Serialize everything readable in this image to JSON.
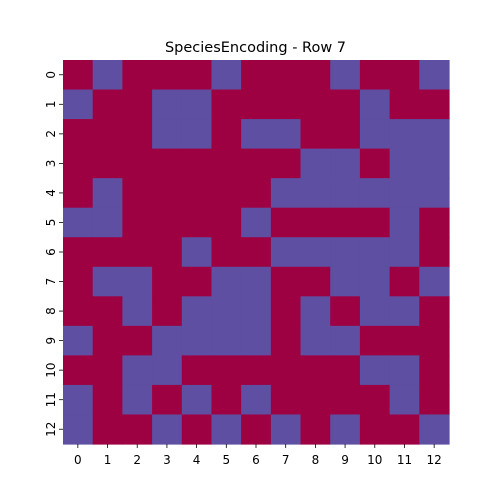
{
  "chart_data": {
    "type": "heatmap",
    "title": "SpeciesEncoding - Row 7",
    "xlabel": "",
    "ylabel": "",
    "x_ticks": [
      "0",
      "1",
      "2",
      "3",
      "4",
      "5",
      "6",
      "7",
      "8",
      "9",
      "10",
      "11",
      "12"
    ],
    "y_ticks": [
      "0",
      "1",
      "2",
      "3",
      "4",
      "5",
      "6",
      "7",
      "8",
      "9",
      "10",
      "11",
      "12"
    ],
    "values": [
      [
        0,
        1,
        0,
        0,
        0,
        1,
        0,
        0,
        0,
        1,
        0,
        0,
        1
      ],
      [
        1,
        0,
        0,
        1,
        1,
        0,
        0,
        0,
        0,
        0,
        1,
        0,
        0
      ],
      [
        0,
        0,
        0,
        1,
        1,
        0,
        1,
        1,
        0,
        0,
        1,
        1,
        1
      ],
      [
        0,
        0,
        0,
        0,
        0,
        0,
        0,
        0,
        1,
        1,
        0,
        1,
        1
      ],
      [
        0,
        1,
        0,
        0,
        0,
        0,
        0,
        1,
        1,
        1,
        1,
        1,
        1
      ],
      [
        1,
        1,
        0,
        0,
        0,
        0,
        1,
        0,
        0,
        0,
        0,
        1,
        0
      ],
      [
        0,
        0,
        0,
        0,
        1,
        0,
        0,
        1,
        1,
        1,
        1,
        1,
        0
      ],
      [
        0,
        1,
        1,
        0,
        0,
        1,
        1,
        0,
        0,
        1,
        1,
        0,
        1
      ],
      [
        0,
        0,
        1,
        0,
        1,
        1,
        1,
        0,
        1,
        0,
        1,
        1,
        0
      ],
      [
        1,
        0,
        0,
        1,
        1,
        1,
        1,
        0,
        1,
        1,
        0,
        0,
        0
      ],
      [
        0,
        0,
        1,
        1,
        0,
        0,
        0,
        0,
        0,
        0,
        1,
        1,
        0
      ],
      [
        1,
        0,
        1,
        0,
        1,
        0,
        1,
        0,
        0,
        0,
        0,
        1,
        0
      ],
      [
        1,
        0,
        0,
        1,
        0,
        1,
        0,
        1,
        0,
        1,
        0,
        0,
        1
      ]
    ],
    "colors": {
      "0": "#9e0142",
      "1": "#5e4fa2"
    },
    "colorbar": false,
    "grid": false
  }
}
